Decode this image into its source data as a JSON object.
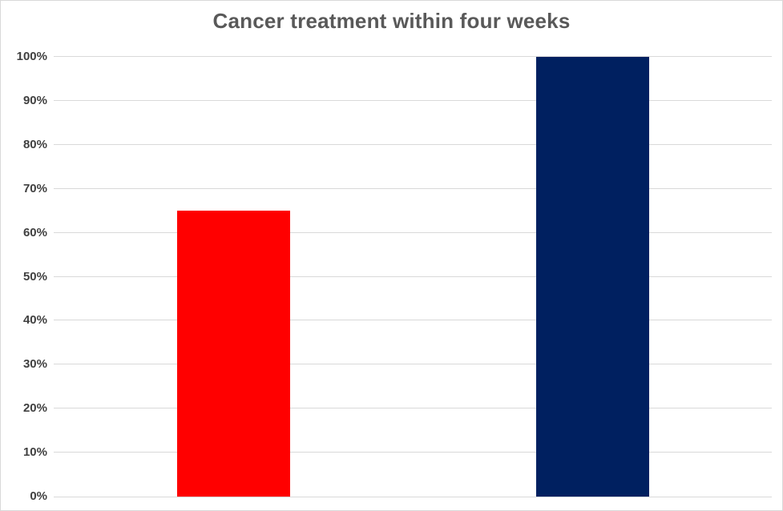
{
  "chart_data": {
    "type": "bar",
    "title": "Cancer treatment within four weeks",
    "categories": [
      "",
      ""
    ],
    "values": [
      65,
      100
    ],
    "bar_colors": [
      "#ff0000",
      "#002060"
    ],
    "xlabel": "",
    "ylabel": "",
    "ylim": [
      0,
      100
    ],
    "yticks": [
      0,
      10,
      20,
      30,
      40,
      50,
      60,
      70,
      80,
      90,
      100
    ],
    "ytick_labels": [
      "0%",
      "10%",
      "20%",
      "30%",
      "40%",
      "50%",
      "60%",
      "70%",
      "80%",
      "90%",
      "100%"
    ],
    "grid": "horizontal",
    "legend": "none",
    "x_axis_category_labels_visible": false
  },
  "colors": {
    "background": "#ffffff",
    "chart_border": "#d9d9d9",
    "gridline": "#d9d9d9",
    "axis_line": "#d9d9d9",
    "title_text": "#595959",
    "axis_label_text": "#404040"
  }
}
